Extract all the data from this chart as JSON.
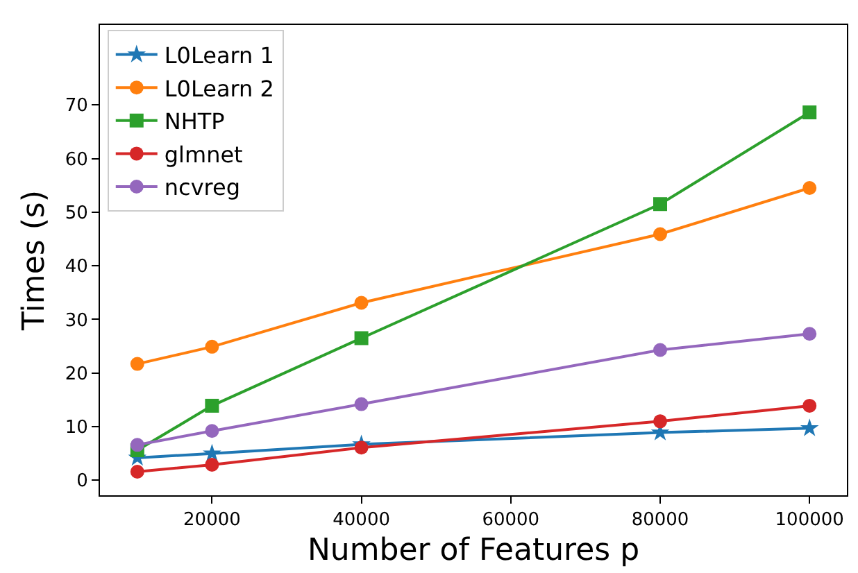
{
  "chart_data": {
    "type": "line",
    "xlabel": "Number of Features p",
    "ylabel": "Times (s)",
    "x": [
      10000,
      20000,
      40000,
      80000,
      100000
    ],
    "series": [
      {
        "name": "L0Learn 1",
        "color": "#1f77b4",
        "marker": "star",
        "values": [
          4.2,
          5.0,
          6.7,
          8.9,
          9.7
        ]
      },
      {
        "name": "L0Learn 2",
        "color": "#ff7f0e",
        "marker": "circle",
        "values": [
          21.7,
          24.9,
          33.1,
          45.9,
          54.5
        ]
      },
      {
        "name": "NHTP",
        "color": "#2ca02c",
        "marker": "square",
        "values": [
          5.6,
          13.9,
          26.5,
          51.5,
          68.6
        ]
      },
      {
        "name": "glmnet",
        "color": "#d62728",
        "marker": "circle",
        "values": [
          1.6,
          2.9,
          6.1,
          11.0,
          13.9
        ]
      },
      {
        "name": "ncvreg",
        "color": "#9467bd",
        "marker": "circle",
        "values": [
          6.6,
          9.2,
          14.2,
          24.3,
          27.3
        ]
      }
    ],
    "xlim": [
      5000,
      105000
    ],
    "xticks": [
      20000,
      40000,
      60000,
      80000,
      100000
    ],
    "ylim": [
      -2.8,
      84.9
    ],
    "yticks": [
      0,
      10,
      20,
      30,
      40,
      50,
      60,
      70
    ],
    "legend": "top left",
    "line_style": "solid"
  }
}
